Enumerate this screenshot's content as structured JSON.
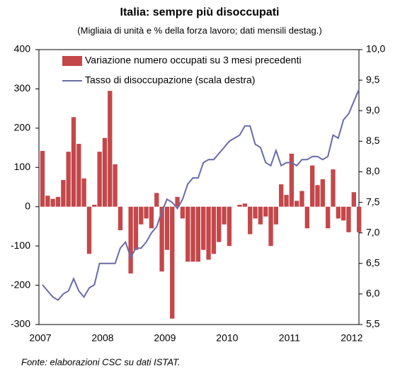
{
  "chart_data": {
    "type": "bar-line",
    "title": "Italia: sempre più disoccupati",
    "subtitle": "(Migliaia di unità e % della forza lavoro; dati mensili destag.)",
    "source": "Fonte: elaborazioni CSC su dati ISTAT.",
    "categories": [
      "2007",
      null,
      null,
      null,
      null,
      null,
      null,
      null,
      null,
      null,
      null,
      null,
      "2008",
      null,
      null,
      null,
      null,
      null,
      null,
      null,
      null,
      null,
      null,
      null,
      "2009",
      null,
      null,
      null,
      null,
      null,
      null,
      null,
      null,
      null,
      null,
      null,
      "2010",
      null,
      null,
      null,
      null,
      null,
      null,
      null,
      null,
      null,
      null,
      null,
      "2011",
      null,
      null,
      null,
      null,
      null,
      null,
      null,
      null,
      null,
      null,
      null,
      "2012",
      null
    ],
    "series": [
      {
        "name": "Variazione numero occupati su 3 mesi precedenti",
        "color": "#c4474a",
        "type": "bar",
        "values": [
          142,
          28,
          20,
          25,
          68,
          140,
          228,
          160,
          72,
          -120,
          5,
          140,
          175,
          295,
          108,
          -60,
          0,
          -170,
          -110,
          -45,
          -30,
          -55,
          35,
          -165,
          -110,
          -285,
          25,
          -30,
          -140,
          -140,
          -140,
          -110,
          -135,
          -120,
          -90,
          -45,
          -100,
          0,
          5,
          8,
          -70,
          -30,
          -45,
          -25,
          -100,
          -45,
          57,
          30,
          135,
          15,
          40,
          -55,
          105,
          55,
          70,
          -55,
          95,
          -30,
          -35,
          -65,
          37,
          -65
        ]
      },
      {
        "name": "Tasso di disoccupazione (scala destra)",
        "color": "#6a6aaa",
        "type": "line",
        "axis": "y2",
        "values": [
          6.15,
          6.05,
          5.95,
          5.9,
          6.0,
          6.05,
          6.25,
          6.05,
          5.95,
          6.1,
          6.15,
          6.5,
          6.5,
          6.5,
          6.5,
          6.75,
          6.85,
          6.6,
          6.75,
          6.75,
          6.85,
          7.0,
          7.1,
          7.35,
          7.55,
          7.5,
          7.4,
          7.55,
          7.8,
          7.9,
          7.9,
          8.15,
          8.2,
          8.2,
          8.3,
          8.4,
          8.5,
          8.55,
          8.6,
          8.75,
          8.75,
          8.45,
          8.4,
          8.15,
          8.1,
          8.35,
          8.1,
          8.15,
          8.15,
          8.1,
          8.2,
          8.2,
          8.25,
          8.25,
          8.2,
          8.25,
          8.6,
          8.55,
          8.85,
          8.95,
          9.15,
          9.35
        ]
      }
    ],
    "ylim": [
      -300,
      400
    ],
    "yticks": [
      -300,
      -200,
      -100,
      0,
      100,
      200,
      300,
      400
    ],
    "y2lim": [
      5.5,
      10
    ],
    "y2ticks": [
      {
        "value": 5.5,
        "label": "5,5"
      },
      {
        "value": 6,
        "label": "6,0"
      },
      {
        "value": 6.5,
        "label": "6,5"
      },
      {
        "value": 7,
        "label": "7,0"
      },
      {
        "value": 7.5,
        "label": "7,5"
      },
      {
        "value": 8,
        "label": "8,0"
      },
      {
        "value": 8.5,
        "label": "8,5"
      },
      {
        "value": 9,
        "label": "9,0"
      },
      {
        "value": 9.5,
        "label": "9,5"
      },
      {
        "value": 10,
        "label": "10,0"
      }
    ],
    "legend": "top-left",
    "grid": false
  }
}
